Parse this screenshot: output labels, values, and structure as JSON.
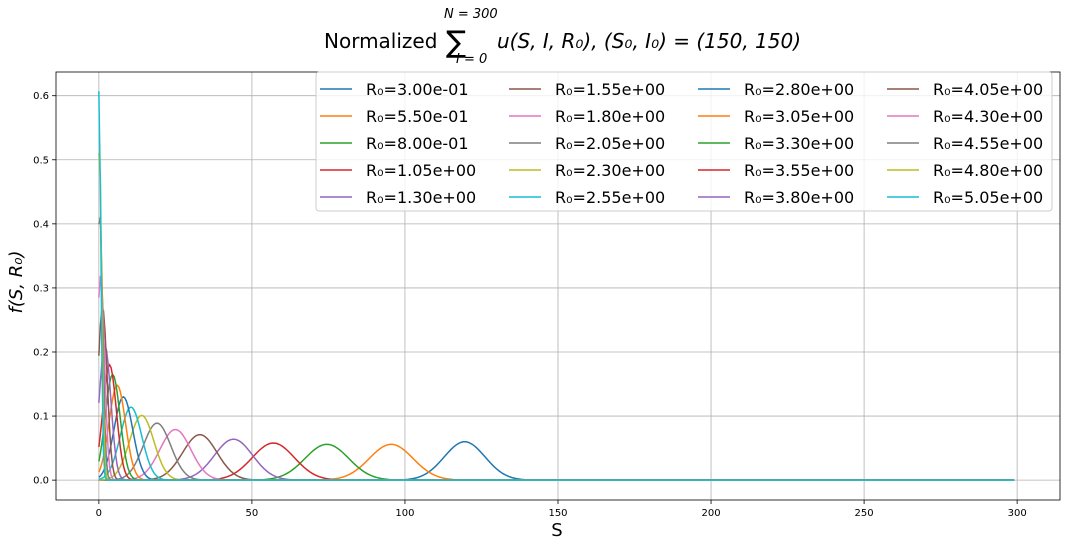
{
  "chart_data": {
    "type": "line",
    "title": "Normalized $\\sum_{I=0}^{N=300} u(S,I,R_0)$, $(S_0,I_0)=(150,150)$",
    "title_parts": {
      "prefix": "Normalized",
      "sum_upper": "N = 300",
      "sum_lower": "I = 0",
      "expression": "u(S, I, R₀), (S₀, I₀) = (150, 150)"
    },
    "xlabel": "S",
    "ylabel": "f(S, R₀)",
    "xlim": [
      -14,
      314
    ],
    "ylim": [
      -0.031,
      0.637
    ],
    "x_ticks": [
      0,
      50,
      100,
      150,
      200,
      250,
      300
    ],
    "y_ticks": [
      0.0,
      0.1,
      0.2,
      0.3,
      0.4,
      0.5,
      0.6
    ],
    "x_tick_labels": [
      "0",
      "50",
      "100",
      "150",
      "200",
      "250",
      "300"
    ],
    "y_tick_labels": [
      "0.0",
      "0.1",
      "0.2",
      "0.3",
      "0.4",
      "0.5",
      "0.6"
    ],
    "grid": true,
    "legend_position": "top-right",
    "legend_columns": 4,
    "x_range": [
      0,
      299
    ],
    "series": [
      {
        "name": "R₀=3.00e-01",
        "color": "#1f77b4",
        "peak_x": 119.5,
        "peak_y": 0.06
      },
      {
        "name": "R₀=5.50e-01",
        "color": "#ff7f0e",
        "peak_x": 95.5,
        "peak_y": 0.056
      },
      {
        "name": "R₀=8.00e-01",
        "color": "#2ca02c",
        "peak_x": 74.5,
        "peak_y": 0.056
      },
      {
        "name": "R₀=1.05e+00",
        "color": "#d62728",
        "peak_x": 57,
        "peak_y": 0.058
      },
      {
        "name": "R₀=1.30e+00",
        "color": "#9467bd",
        "peak_x": 44,
        "peak_y": 0.064
      },
      {
        "name": "R₀=1.55e+00",
        "color": "#8c564b",
        "peak_x": 33,
        "peak_y": 0.071
      },
      {
        "name": "R₀=1.80e+00",
        "color": "#e377c2",
        "peak_x": 25,
        "peak_y": 0.079
      },
      {
        "name": "R₀=2.05e+00",
        "color": "#7f7f7f",
        "peak_x": 19,
        "peak_y": 0.089
      },
      {
        "name": "R₀=2.30e+00",
        "color": "#bcbd22",
        "peak_x": 14,
        "peak_y": 0.101
      },
      {
        "name": "R₀=2.55e+00",
        "color": "#17becf",
        "peak_x": 10.5,
        "peak_y": 0.114
      },
      {
        "name": "R₀=2.80e+00",
        "color": "#1f77b4",
        "peak_x": 8,
        "peak_y": 0.13
      },
      {
        "name": "R₀=3.05e+00",
        "color": "#ff7f0e",
        "peak_x": 6,
        "peak_y": 0.148
      },
      {
        "name": "R₀=3.30e+00",
        "color": "#2ca02c",
        "peak_x": 4.5,
        "peak_y": 0.165
      },
      {
        "name": "R₀=3.55e+00",
        "color": "#d62728",
        "peak_x": 3.5,
        "peak_y": 0.18
      },
      {
        "name": "R₀=3.80e+00",
        "color": "#9467bd",
        "peak_x": 2,
        "peak_y": 0.21
      },
      {
        "name": "R₀=4.05e+00",
        "color": "#8c564b",
        "peak_x": 1.2,
        "peak_y": 0.27
      },
      {
        "name": "R₀=4.30e+00",
        "color": "#e377c2",
        "peak_x": 0.6,
        "peak_y": 0.32
      },
      {
        "name": "R₀=4.55e+00",
        "color": "#7f7f7f",
        "peak_x": 0.3,
        "peak_y": 0.42
      },
      {
        "name": "R₀=4.80e+00",
        "color": "#bcbd22",
        "peak_x": 0.15,
        "peak_y": 0.52
      },
      {
        "name": "R₀=5.05e+00",
        "color": "#17becf",
        "peak_x": 0.0,
        "peak_y": 0.607
      }
    ]
  }
}
